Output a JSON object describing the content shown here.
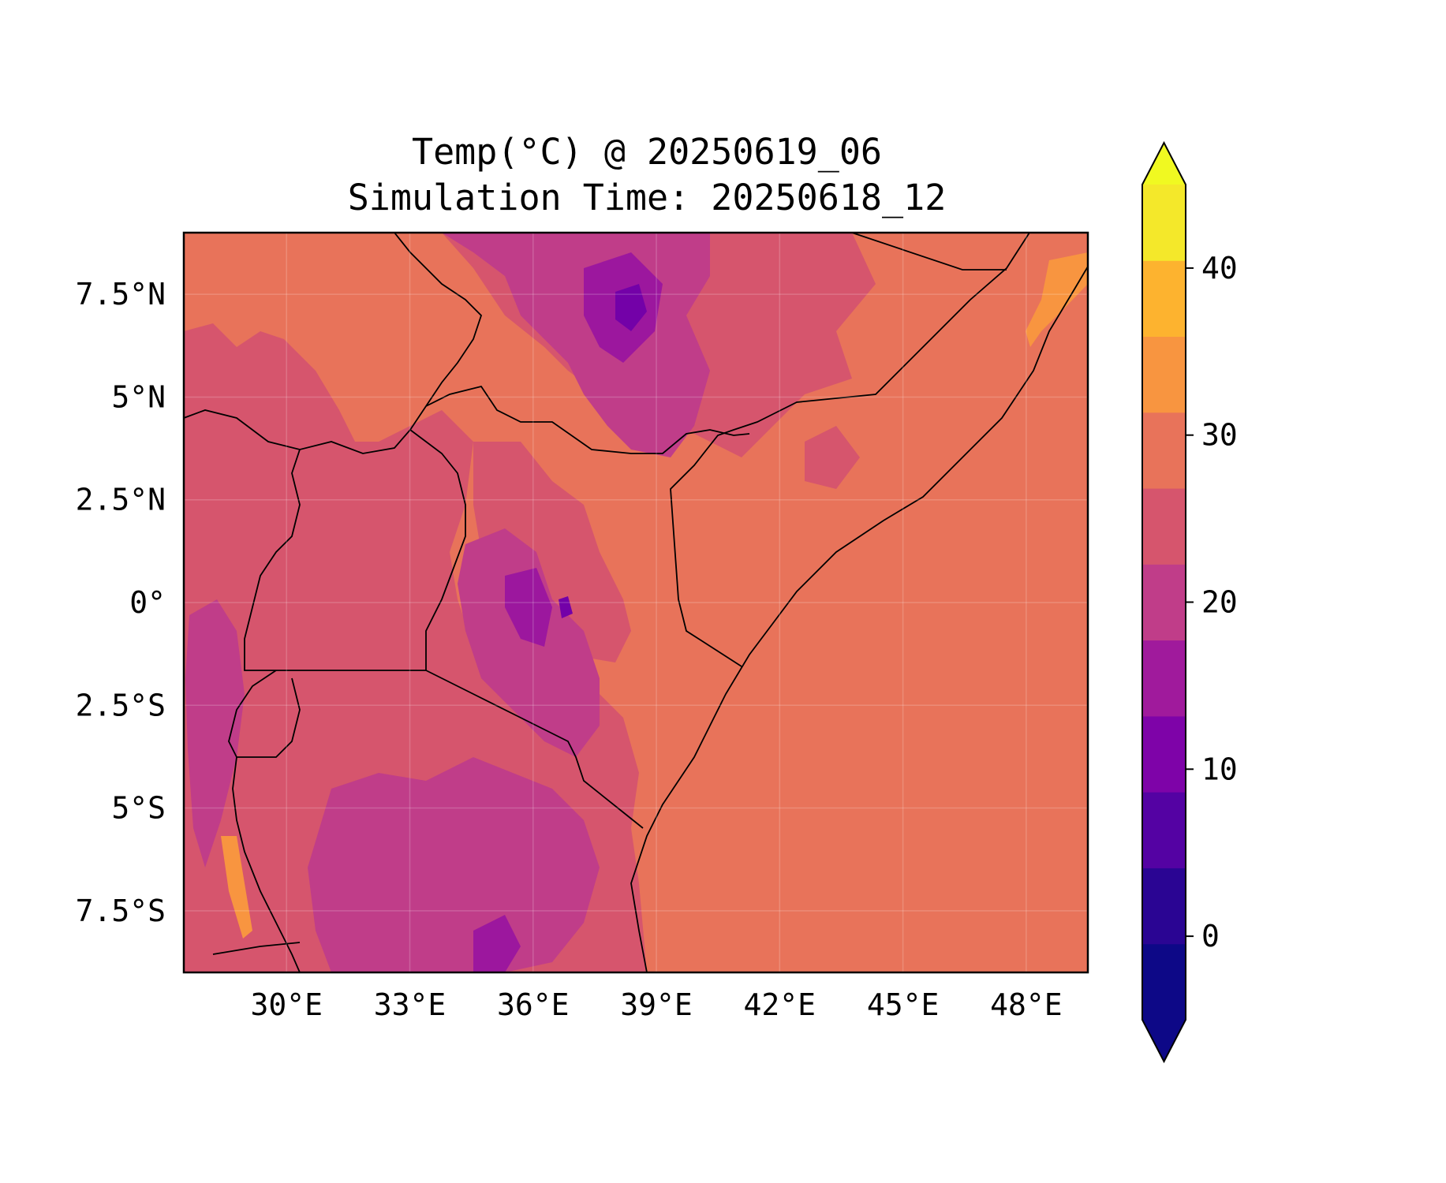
{
  "title": {
    "line1": "Temp(°C) @ 20250619_06",
    "line2": "Simulation Time: 20250618_12"
  },
  "map": {
    "variable": "Temperature",
    "units": "°C",
    "lon_range": [
      27.5,
      49.5
    ],
    "lat_range": [
      -9,
      9
    ],
    "lon_ticks": [
      {
        "value": 30,
        "label": "30°E"
      },
      {
        "value": 33,
        "label": "33°E"
      },
      {
        "value": 36,
        "label": "36°E"
      },
      {
        "value": 39,
        "label": "39°E"
      },
      {
        "value": 42,
        "label": "42°E"
      },
      {
        "value": 45,
        "label": "45°E"
      },
      {
        "value": 48,
        "label": "48°E"
      }
    ],
    "lat_ticks": [
      {
        "value": 7.5,
        "label": "7.5°N"
      },
      {
        "value": 5,
        "label": "5°N"
      },
      {
        "value": 2.5,
        "label": "2.5°N"
      },
      {
        "value": 0,
        "label": "0°"
      },
      {
        "value": -2.5,
        "label": "2.5°S"
      },
      {
        "value": -5,
        "label": "5°S"
      },
      {
        "value": -7.5,
        "label": "7.5°S"
      }
    ],
    "grid": true,
    "fill_colors": {
      "ocean_and_lowland": "#e8735a",
      "cooler_highland": "#d6556d",
      "cool_highland": "#c03d89",
      "cold_peaks": "#9c179e",
      "coldest_peaks": "#7301a8",
      "warm_coast": "#f89540"
    }
  },
  "colorbar": {
    "levels": [
      -5,
      0,
      5,
      10,
      15,
      20,
      25,
      30,
      35,
      40,
      45
    ],
    "colors": [
      "#0d0887",
      "#2a0593",
      "#5402a3",
      "#7e03a8",
      "#a01a9c",
      "#c03d89",
      "#d6556d",
      "#e8735a",
      "#f89540",
      "#fdb32f",
      "#f4e82a"
    ],
    "under_color": "#0d0887",
    "over_color": "#f0f921",
    "extend": "both",
    "tick_values": [
      0,
      10,
      20,
      30,
      40
    ],
    "tick_labels": [
      "0",
      "10",
      "20",
      "30",
      "40"
    ]
  }
}
